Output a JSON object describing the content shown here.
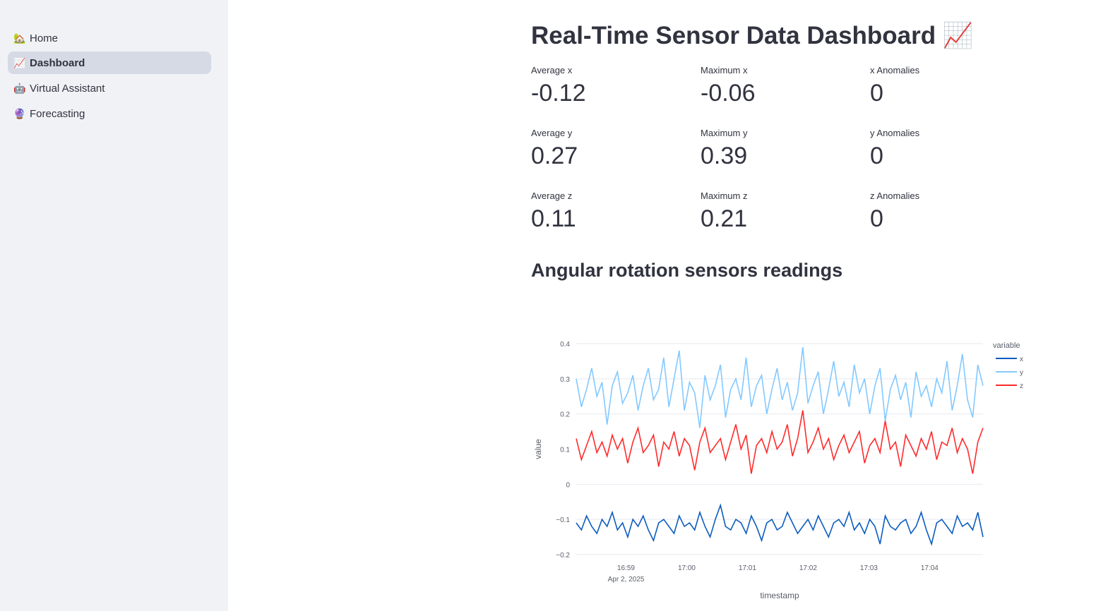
{
  "sidebar": {
    "items": [
      {
        "icon": "🏡",
        "label": "Home"
      },
      {
        "icon": "📈",
        "label": "Dashboard",
        "active": true
      },
      {
        "icon": "🤖",
        "label": "Virtual Assistant"
      },
      {
        "icon": "🔮",
        "label": "Forecasting"
      }
    ]
  },
  "page": {
    "title": "Real-Time Sensor Data Dashboard 📈",
    "subheader": "Angular rotation sensors readings"
  },
  "metrics": [
    {
      "label": "Average x",
      "value": "-0.12"
    },
    {
      "label": "Maximum x",
      "value": "-0.06"
    },
    {
      "label": "x Anomalies",
      "value": "0"
    },
    {
      "label": "Average y",
      "value": "0.27"
    },
    {
      "label": "Maximum y",
      "value": "0.39"
    },
    {
      "label": "y Anomalies",
      "value": "0"
    },
    {
      "label": "Average z",
      "value": "0.11"
    },
    {
      "label": "Maximum z",
      "value": "0.21"
    },
    {
      "label": "z Anomalies",
      "value": "0"
    }
  ],
  "chart_data": {
    "type": "line",
    "xlabel": "timestamp",
    "ylabel": "value",
    "ylim": [
      -0.2,
      0.4
    ],
    "yticks": [
      "0.4",
      "0.3",
      "0.2",
      "0.1",
      "0",
      "−0.1",
      "−0.2"
    ],
    "ytick_values": [
      0.4,
      0.3,
      0.2,
      0.1,
      0,
      -0.1,
      -0.2
    ],
    "xticks": [
      "16:59",
      "17:00",
      "17:01",
      "17:02",
      "17:03",
      "17:04"
    ],
    "xtick_minutes": [
      0.82,
      1.82,
      2.82,
      3.82,
      4.82,
      5.82
    ],
    "xrange_minutes": [
      0,
      6.7
    ],
    "date_label": "Apr 2, 2025",
    "legend_title": "variable",
    "legend_position": "right",
    "series": [
      {
        "name": "x",
        "color": "#0b5cbf",
        "values": [
          -0.11,
          -0.13,
          -0.09,
          -0.12,
          -0.14,
          -0.1,
          -0.12,
          -0.08,
          -0.13,
          -0.11,
          -0.15,
          -0.1,
          -0.12,
          -0.09,
          -0.13,
          -0.16,
          -0.11,
          -0.1,
          -0.12,
          -0.14,
          -0.09,
          -0.12,
          -0.11,
          -0.13,
          -0.08,
          -0.12,
          -0.15,
          -0.1,
          -0.06,
          -0.12,
          -0.13,
          -0.1,
          -0.11,
          -0.14,
          -0.09,
          -0.12,
          -0.16,
          -0.11,
          -0.1,
          -0.13,
          -0.12,
          -0.08,
          -0.11,
          -0.14,
          -0.12,
          -0.1,
          -0.13,
          -0.09,
          -0.12,
          -0.15,
          -0.11,
          -0.1,
          -0.12,
          -0.08,
          -0.13,
          -0.11,
          -0.14,
          -0.1,
          -0.12,
          -0.17,
          -0.09,
          -0.12,
          -0.13,
          -0.11,
          -0.1,
          -0.14,
          -0.12,
          -0.08,
          -0.13,
          -0.17,
          -0.11,
          -0.1,
          -0.12,
          -0.14,
          -0.09,
          -0.12,
          -0.11,
          -0.13,
          -0.08,
          -0.15
        ]
      },
      {
        "name": "y",
        "color": "#83c9ff",
        "values": [
          0.3,
          0.22,
          0.27,
          0.33,
          0.25,
          0.29,
          0.17,
          0.28,
          0.32,
          0.23,
          0.26,
          0.31,
          0.21,
          0.28,
          0.33,
          0.24,
          0.27,
          0.36,
          0.22,
          0.3,
          0.38,
          0.21,
          0.29,
          0.26,
          0.16,
          0.31,
          0.24,
          0.28,
          0.34,
          0.19,
          0.27,
          0.3,
          0.24,
          0.36,
          0.22,
          0.28,
          0.31,
          0.2,
          0.27,
          0.33,
          0.24,
          0.29,
          0.21,
          0.26,
          0.39,
          0.23,
          0.28,
          0.32,
          0.2,
          0.27,
          0.35,
          0.25,
          0.29,
          0.22,
          0.34,
          0.26,
          0.3,
          0.2,
          0.28,
          0.33,
          0.18,
          0.27,
          0.31,
          0.24,
          0.29,
          0.19,
          0.32,
          0.25,
          0.28,
          0.22,
          0.3,
          0.26,
          0.35,
          0.21,
          0.28,
          0.37,
          0.24,
          0.19,
          0.34,
          0.28
        ]
      },
      {
        "name": "z",
        "color": "#ff2b2b",
        "values": [
          0.13,
          0.07,
          0.11,
          0.15,
          0.09,
          0.12,
          0.08,
          0.14,
          0.1,
          0.13,
          0.06,
          0.12,
          0.16,
          0.09,
          0.11,
          0.14,
          0.05,
          0.12,
          0.1,
          0.15,
          0.08,
          0.13,
          0.11,
          0.04,
          0.12,
          0.16,
          0.09,
          0.11,
          0.13,
          0.07,
          0.12,
          0.17,
          0.1,
          0.14,
          0.03,
          0.11,
          0.13,
          0.09,
          0.15,
          0.1,
          0.12,
          0.17,
          0.08,
          0.13,
          0.21,
          0.09,
          0.12,
          0.16,
          0.1,
          0.13,
          0.07,
          0.11,
          0.14,
          0.09,
          0.12,
          0.15,
          0.06,
          0.11,
          0.13,
          0.09,
          0.18,
          0.1,
          0.12,
          0.05,
          0.14,
          0.11,
          0.08,
          0.13,
          0.1,
          0.15,
          0.07,
          0.12,
          0.11,
          0.16,
          0.09,
          0.13,
          0.1,
          0.03,
          0.12,
          0.16
        ]
      }
    ]
  }
}
